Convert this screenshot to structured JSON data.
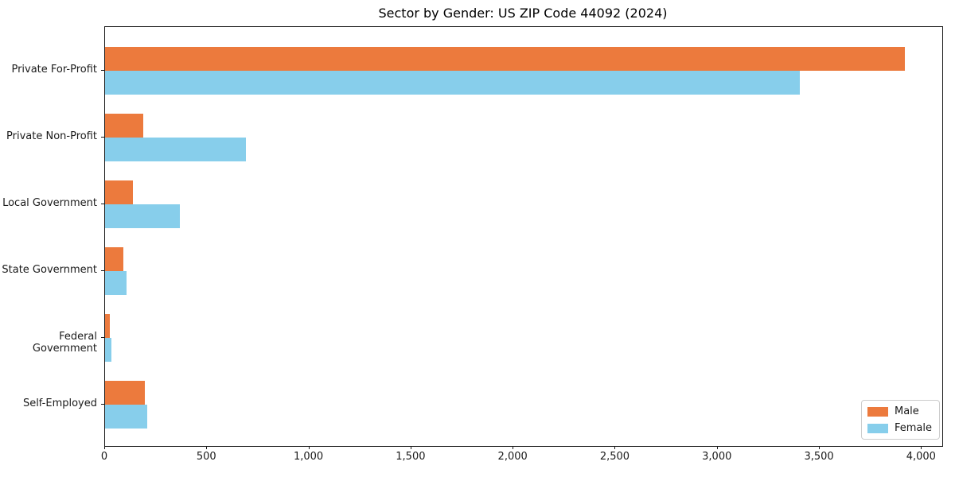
{
  "title": "Sector by Gender: US ZIP Code 44092 (2024)",
  "chart_data": {
    "type": "bar",
    "orientation": "horizontal",
    "title": "Sector by Gender: US ZIP Code 44092 (2024)",
    "categories": [
      "Private For-Profit",
      "Private Non-Profit",
      "Local Government",
      "State Government",
      "Federal Government",
      "Self-Employed"
    ],
    "series": [
      {
        "name": "Male",
        "color": "#EC7A3D",
        "values": [
          3915,
          187,
          136,
          90,
          23,
          195
        ]
      },
      {
        "name": "Female",
        "color": "#87CEEB",
        "values": [
          3404,
          690,
          367,
          105,
          31,
          207
        ]
      }
    ],
    "xlabel": "",
    "ylabel": "",
    "x_ticks": [
      0,
      500,
      1000,
      1500,
      2000,
      2500,
      3000,
      3500,
      4000
    ],
    "x_tick_labels": [
      "0",
      "500",
      "1,000",
      "1,500",
      "2,000",
      "2,500",
      "3,000",
      "3,500",
      "4,000"
    ],
    "xlim": [
      0,
      4100
    ],
    "grid": false,
    "legend": {
      "position": "lower right",
      "entries": [
        "Male",
        "Female"
      ]
    }
  }
}
